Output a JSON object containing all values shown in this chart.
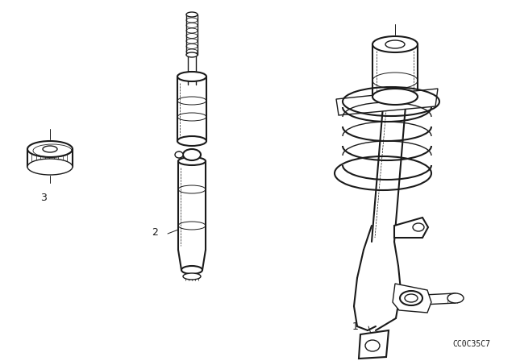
{
  "bg_color": "#ffffff",
  "line_color": "#1a1a1a",
  "fig_width": 6.4,
  "fig_height": 4.48,
  "dpi": 100,
  "watermark_text": "CC0C35C7",
  "watermark_fontsize": 7,
  "label_fontsize": 9
}
